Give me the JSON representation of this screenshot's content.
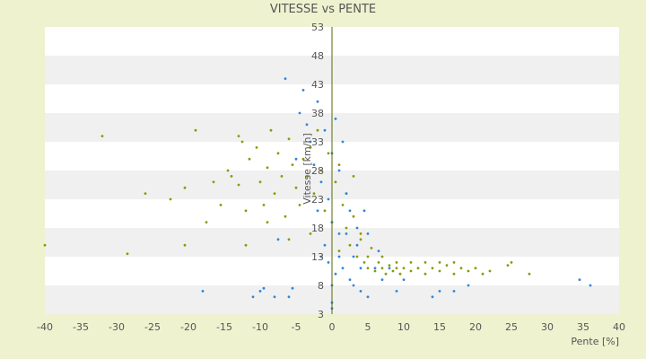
{
  "chart_data": {
    "type": "scatter",
    "title": "VITESSE vs PENTE",
    "xlabel": "Pente [%]",
    "ylabel": "Vitesse [km/h]",
    "xlim": [
      -40,
      40
    ],
    "ylim": [
      3,
      53
    ],
    "x_ticks": [
      "-40",
      "-35",
      "-30",
      "-25",
      "-20",
      "-15",
      "-10",
      "-5",
      "0",
      "5",
      "10",
      "15",
      "20",
      "25",
      "30",
      "35",
      "40"
    ],
    "y_ticks": [
      "3",
      "8",
      "13",
      "18",
      "23",
      "28",
      "33",
      "38",
      "43",
      "48",
      "53"
    ],
    "grid": "horizontal alternating bands",
    "legend": "none",
    "colors": {
      "background": "#eef2cf",
      "plot_band_light": "#ffffff",
      "plot_band_dark": "#f0f0f0",
      "zero_line": "#556b00",
      "series_a": "#8a9a00",
      "series_b": "#2f86d9"
    },
    "series": [
      {
        "color": "#8a9a00",
        "points": [
          [
            -40,
            15
          ],
          [
            -32,
            34
          ],
          [
            -28.5,
            13.5
          ],
          [
            -26,
            24
          ],
          [
            -22.5,
            23
          ],
          [
            -20.5,
            25
          ],
          [
            -20.5,
            15
          ],
          [
            -19,
            35
          ],
          [
            -17.5,
            19
          ],
          [
            -16.5,
            26
          ],
          [
            -15.5,
            22
          ],
          [
            -14.5,
            28
          ],
          [
            -14,
            27
          ],
          [
            -13,
            25.5
          ],
          [
            -12.5,
            33
          ],
          [
            -12,
            21
          ],
          [
            -11.5,
            30
          ],
          [
            -10.5,
            32
          ],
          [
            -10,
            26
          ],
          [
            -9.5,
            22
          ],
          [
            -9,
            28.5
          ],
          [
            -8.5,
            35
          ],
          [
            -8,
            24
          ],
          [
            -7.5,
            31
          ],
          [
            -7,
            27
          ],
          [
            -6.5,
            20
          ],
          [
            -6,
            33.5
          ],
          [
            -5.5,
            29
          ],
          [
            -5,
            25
          ],
          [
            -4.5,
            22
          ],
          [
            -4,
            30
          ],
          [
            -3.5,
            27
          ],
          [
            -3,
            32
          ],
          [
            -2.5,
            24
          ],
          [
            -2,
            35
          ],
          [
            -1.5,
            28
          ],
          [
            -1,
            21
          ],
          [
            -0.5,
            31
          ],
          [
            0,
            19
          ],
          [
            0.5,
            26
          ],
          [
            1,
            14
          ],
          [
            1.5,
            22
          ],
          [
            2,
            18
          ],
          [
            2.5,
            15
          ],
          [
            3,
            20
          ],
          [
            3.5,
            13
          ],
          [
            4,
            17
          ],
          [
            4.5,
            12
          ],
          [
            5,
            11
          ],
          [
            5.5,
            14.5
          ],
          [
            6,
            10.5
          ],
          [
            6.5,
            12
          ],
          [
            7,
            11
          ],
          [
            7.5,
            10
          ],
          [
            8,
            11.5
          ],
          [
            8.5,
            10.5
          ],
          [
            9,
            11
          ],
          [
            9.5,
            10
          ],
          [
            10,
            11
          ],
          [
            11,
            10.5
          ],
          [
            12,
            11
          ],
          [
            13,
            10
          ],
          [
            14,
            11
          ],
          [
            15,
            10.5
          ],
          [
            16,
            11.5
          ],
          [
            17,
            10
          ],
          [
            18,
            11
          ],
          [
            19,
            10.5
          ],
          [
            20,
            11
          ],
          [
            21,
            10
          ],
          [
            22,
            10.5
          ],
          [
            24.5,
            11.5
          ],
          [
            25,
            12
          ],
          [
            27.5,
            10
          ],
          [
            -13,
            34
          ],
          [
            -9,
            19
          ],
          [
            -6,
            16
          ],
          [
            -3,
            17
          ],
          [
            1,
            29
          ],
          [
            2,
            24
          ],
          [
            3,
            27
          ],
          [
            4,
            16
          ],
          [
            5,
            13
          ],
          [
            7,
            13
          ],
          [
            9,
            12
          ],
          [
            11,
            12
          ],
          [
            13,
            12
          ],
          [
            15,
            12
          ],
          [
            17,
            12
          ],
          [
            -12,
            15
          ]
        ]
      },
      {
        "color": "#2f86d9",
        "points": [
          [
            -18,
            7
          ],
          [
            -11,
            6
          ],
          [
            -10,
            7
          ],
          [
            -9.5,
            7.5
          ],
          [
            -8,
            6
          ],
          [
            -7.5,
            16
          ],
          [
            -6.5,
            44
          ],
          [
            -6,
            6
          ],
          [
            -5.5,
            7.5
          ],
          [
            -5,
            30
          ],
          [
            -4.5,
            38
          ],
          [
            -4,
            42
          ],
          [
            -3.5,
            36
          ],
          [
            -3,
            33
          ],
          [
            -2.5,
            29
          ],
          [
            -2,
            40
          ],
          [
            -1.5,
            26
          ],
          [
            -1,
            35
          ],
          [
            -0.5,
            23
          ],
          [
            0,
            19
          ],
          [
            0,
            8
          ],
          [
            0,
            5
          ],
          [
            0,
            4
          ],
          [
            0,
            31
          ],
          [
            0.5,
            37
          ],
          [
            1,
            28
          ],
          [
            1,
            13
          ],
          [
            1.5,
            33
          ],
          [
            2,
            24
          ],
          [
            2,
            17
          ],
          [
            2.5,
            21
          ],
          [
            3,
            13
          ],
          [
            3,
            8
          ],
          [
            3.5,
            18
          ],
          [
            4,
            11
          ],
          [
            4,
            7
          ],
          [
            4.5,
            21
          ],
          [
            5,
            17
          ],
          [
            5,
            6
          ],
          [
            6,
            11
          ],
          [
            6.5,
            14
          ],
          [
            7,
            9
          ],
          [
            8,
            11
          ],
          [
            9,
            7
          ],
          [
            10,
            9
          ],
          [
            14,
            6
          ],
          [
            15,
            7
          ],
          [
            17,
            7
          ],
          [
            19,
            8
          ],
          [
            34.5,
            9
          ],
          [
            36,
            8
          ],
          [
            -2,
            21
          ],
          [
            -1.5,
            13
          ],
          [
            -1,
            15
          ],
          [
            -0.5,
            12
          ],
          [
            0.5,
            10
          ],
          [
            1,
            17
          ],
          [
            1.5,
            11
          ],
          [
            2.5,
            9
          ],
          [
            3.5,
            15
          ]
        ]
      }
    ]
  }
}
